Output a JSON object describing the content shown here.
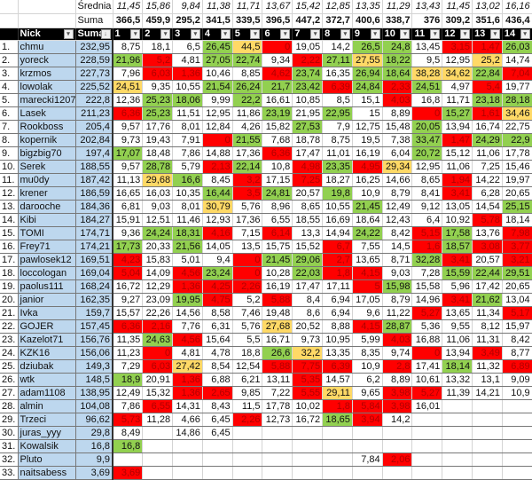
{
  "header": {
    "avg_label": "Średnia",
    "sum_label": "Suma",
    "averages": [
      "11,45",
      "15,86",
      "9,84",
      "11,38",
      "11,71",
      "13,67",
      "15,42",
      "12,85",
      "13,35",
      "11,29",
      "13,43",
      "11,45",
      "13,02",
      "16,16"
    ],
    "sums": [
      "366,5",
      "459,9",
      "295,2",
      "341,5",
      "339,5",
      "396,5",
      "447,2",
      "372,7",
      "400,6",
      "338,7",
      "376",
      "309,2",
      "351,6",
      "436,4"
    ],
    "columns": [
      "Nick",
      "Suma",
      "1",
      "2",
      "3",
      "4",
      "5",
      "6",
      "7",
      "8",
      "9",
      "10",
      "11",
      "12",
      "13",
      "14"
    ]
  },
  "colors": {
    "g": "#92d050",
    "r": "#ff0000",
    "y": "#ffd966",
    "nick_bg": "#bdd7ee"
  },
  "rows": [
    {
      "rank": "1.",
      "nick": "chmu",
      "suma": "232,95",
      "vals": [
        "8,75",
        "18,1",
        "6,5",
        "26,45",
        "44,5",
        "0",
        "19,05",
        "14,2",
        "26,5",
        "24,8",
        "13,45",
        "3,15",
        "1,47",
        "26,03"
      ],
      "c": "wwwgyrwwggwrrg"
    },
    {
      "rank": "2.",
      "nick": "yoreck",
      "suma": "228,59",
      "vals": [
        "21,96",
        "5,2",
        "4,81",
        "27,05",
        "22,74",
        "9,34",
        "2,22",
        "27,11",
        "27,55",
        "18,22",
        "9,5",
        "12,95",
        "25,2",
        "14,74"
      ],
      "c": "grwggwrgygwwyw"
    },
    {
      "rank": "3.",
      "nick": "krzmos",
      "suma": "227,73",
      "vals": [
        "7,96",
        "6,03",
        "1,36",
        "10,46",
        "8,85",
        "4,62",
        "23,74",
        "16,35",
        "26,94",
        "18,64",
        "38,28",
        "34,62",
        "22,84",
        "7,04"
      ],
      "c": "wrrwwrgwggyygr"
    },
    {
      "rank": "4.",
      "nick": "lowolak",
      "suma": "225,52",
      "vals": [
        "24,51",
        "9,35",
        "10,55",
        "21,54",
        "26,24",
        "21,7",
        "23,42",
        "6,39",
        "24,84",
        "2,33",
        "24,51",
        "4,97",
        "5,4",
        "19,77"
      ],
      "c": "ywwggggrgrgwrw"
    },
    {
      "rank": "5.",
      "nick": "marecki1207",
      "suma": "222,8",
      "vals": [
        "12,36",
        "25,23",
        "18,06",
        "9,99",
        "22,2",
        "16,61",
        "10,85",
        "8,5",
        "15,1",
        "4,03",
        "16,8",
        "11,71",
        "23,18",
        "28,18"
      ],
      "c": "wggwgwwwwrwwgg"
    },
    {
      "rank": "6.",
      "nick": "Lasek",
      "suma": "211,23",
      "vals": [
        "6,36",
        "25,23",
        "11,51",
        "12,95",
        "11,86",
        "23,19",
        "21,95",
        "22,95",
        "15",
        "8,89",
        "0",
        "15,27",
        "1,61",
        "34,46"
      ],
      "c": "rgwwwgwgwwrgry"
    },
    {
      "rank": "7.",
      "nick": "Rookboss",
      "suma": "205,4",
      "vals": [
        "9,57",
        "17,76",
        "8,01",
        "12,84",
        "4,26",
        "15,82",
        "27,53",
        "7,9",
        "12,75",
        "15,48",
        "20,05",
        "13,94",
        "16,74",
        "22,75"
      ],
      "c": "wwwwwwgwwwgwww"
    },
    {
      "rank": "8.",
      "nick": "kopernik",
      "suma": "202,84",
      "vals": [
        "9,73",
        "19,43",
        "7,91",
        "0",
        "21,55",
        "7,68",
        "18,78",
        "8,75",
        "19,5",
        "7,38",
        "33,47",
        "1,47",
        "24,29",
        "22,9"
      ],
      "c": "wwwrgwwwwwgrgg"
    },
    {
      "rank": "9.",
      "nick": "bigzbig70",
      "suma": "197,4",
      "vals": [
        "17,07",
        "18,48",
        "7,86",
        "14,88",
        "17,36",
        "6,36",
        "17,47",
        "11,01",
        "16,19",
        "6,04",
        "20,72",
        "15,12",
        "11,06",
        "17,78"
      ],
      "c": "gwwwwrwwwwgwww"
    },
    {
      "rank": "10.",
      "nick": "Serek",
      "suma": "188,55",
      "vals": [
        "9,57",
        "28,78",
        "5,79",
        "2,13",
        "22,14",
        "10,8",
        "4,98",
        "23,35",
        "4,95",
        "29,34",
        "12,95",
        "11,06",
        "7,25",
        "15,46"
      ],
      "c": "wgwrgwrgrywwww"
    },
    {
      "rank": "11.",
      "nick": "mu0dy",
      "suma": "187,42",
      "vals": [
        "11,13",
        "29,68",
        "16,6",
        "8,45",
        "3,2",
        "17,15",
        "7,25",
        "18,27",
        "16,25",
        "14,66",
        "8,65",
        "1,94",
        "14,22",
        "19,97"
      ],
      "c": "wygwrwrwwwwrww"
    },
    {
      "rank": "12.",
      "nick": "krener",
      "suma": "186,59",
      "vals": [
        "16,65",
        "16,03",
        "10,35",
        "16,44",
        "3,5",
        "24,81",
        "20,57",
        "19,8",
        "10,9",
        "8,79",
        "8,41",
        "3,41",
        "6,28",
        "20,65"
      ],
      "c": "wwwgrgwgwwwrww"
    },
    {
      "rank": "13.",
      "nick": "darooche",
      "suma": "184,36",
      "vals": [
        "6,81",
        "9,03",
        "8,01",
        "30,79",
        "5,76",
        "8,96",
        "8,65",
        "10,55",
        "21,45",
        "12,49",
        "9,12",
        "13,05",
        "14,54",
        "25,15"
      ],
      "c": "wwwywwwwgwwwwg"
    },
    {
      "rank": "14.",
      "nick": "Kibi",
      "suma": "184,27",
      "vals": [
        "15,91",
        "12,51",
        "11,46",
        "12,93",
        "17,36",
        "6,55",
        "18,55",
        "16,69",
        "18,64",
        "12,43",
        "6,4",
        "10,92",
        "5,78",
        "18,14"
      ],
      "c": "wwwwwwwwwwwwrw"
    },
    {
      "rank": "15.",
      "nick": "TOMI",
      "suma": "174,71",
      "vals": [
        "9,36",
        "24,24",
        "18,31",
        "4,16",
        "7,15",
        "6,14",
        "13,3",
        "14,94",
        "24,22",
        "8,42",
        "5,15",
        "17,58",
        "13,76",
        "7,98"
      ],
      "c": "wggrwrwwgwrgwr"
    },
    {
      "rank": "16.",
      "nick": "Frey71",
      "suma": "174,21",
      "vals": [
        "17,73",
        "20,33",
        "21,56",
        "14,05",
        "13,5",
        "15,75",
        "15,52",
        "6,7",
        "7,55",
        "14,5",
        "1,6",
        "18,57",
        "3,08",
        "3,77"
      ],
      "c": "gwgwwwwrwwrgrr"
    },
    {
      "rank": "17.",
      "nick": "pawlosek12",
      "suma": "169,51",
      "vals": [
        "4,23",
        "15,83",
        "5,01",
        "9,4",
        "0",
        "21,45",
        "29,06",
        "2,7",
        "13,65",
        "8,71",
        "32,28",
        "3,41",
        "20,57",
        "3,21"
      ],
      "c": "rwwwrggrwwgrwr"
    },
    {
      "rank": "18.",
      "nick": "loccologan",
      "suma": "169,04",
      "vals": [
        "5,04",
        "14,09",
        "4,56",
        "23,24",
        "0",
        "10,28",
        "22,03",
        "1,8",
        "4,15",
        "9,03",
        "7,28",
        "15,59",
        "22,44",
        "29,51"
      ],
      "c": "rwrgrwgrrwwggg"
    },
    {
      "rank": "19.",
      "nick": "paolus111",
      "suma": "168,24",
      "vals": [
        "16,72",
        "12,29",
        "1,36",
        "4,25",
        "2,26",
        "16,19",
        "17,47",
        "17,11",
        "5",
        "15,98",
        "15,58",
        "5,96",
        "17,42",
        "20,65"
      ],
      "c": "wwrrrwwwrgwwww"
    },
    {
      "rank": "20.",
      "nick": "janior",
      "suma": "162,35",
      "vals": [
        "9,27",
        "23,09",
        "19,95",
        "4,75",
        "5,2",
        "5,88",
        "8,4",
        "6,94",
        "17,05",
        "8,79",
        "14,96",
        "3,41",
        "21,62",
        "13,04"
      ],
      "c": "wwgrwrwwwwwrgw"
    },
    {
      "rank": "21.",
      "nick": "Ivka",
      "suma": "159,7",
      "vals": [
        "15,57",
        "22,26",
        "14,56",
        "8,58",
        "7,46",
        "19,48",
        "8,6",
        "6,94",
        "9,6",
        "11,22",
        "5,27",
        "13,65",
        "11,34",
        "5,17"
      ],
      "c": "wwwwwwwwwwrwwr"
    },
    {
      "rank": "22.",
      "nick": "GOJER",
      "suma": "157,45",
      "vals": [
        "6,36",
        "2,16",
        "7,76",
        "6,31",
        "5,76",
        "27,68",
        "20,52",
        "8,88",
        "4,15",
        "28,87",
        "5,36",
        "9,55",
        "8,12",
        "15,97"
      ],
      "c": "rrwwwywwrgwwww"
    },
    {
      "rank": "23.",
      "nick": "Kazelot71",
      "suma": "156,76",
      "vals": [
        "11,35",
        "24,63",
        "4,56",
        "15,64",
        "5,5",
        "16,71",
        "9,73",
        "10,95",
        "5,99",
        "4,03",
        "16,88",
        "11,06",
        "11,31",
        "8,42"
      ],
      "c": "wgrwwwwwwrwwww"
    },
    {
      "rank": "24.",
      "nick": "KZK16",
      "suma": "156,06",
      "vals": [
        "11,23",
        "0",
        "4,81",
        "4,78",
        "18,8",
        "26,6",
        "32,2",
        "13,35",
        "8,35",
        "9,74",
        "0",
        "13,94",
        "3,49",
        "8,77"
      ],
      "c": "wrwwwgywwwrwrw"
    },
    {
      "rank": "25.",
      "nick": "dziubak",
      "suma": "149,3",
      "vals": [
        "7,29",
        "6,03",
        "27,42",
        "8,54",
        "12,54",
        "5,88",
        "7,75",
        "6,39",
        "10,9",
        "2,8",
        "17,41",
        "18,14",
        "11,32",
        "6,89"
      ],
      "c": "wrywwrrrwrwgwr"
    },
    {
      "rank": "26.",
      "nick": "wtk",
      "suma": "148,5",
      "vals": [
        "18,9",
        "20,91",
        "1,36",
        "6,88",
        "6,21",
        "13,11",
        "5,35",
        "14,57",
        "6,2",
        "8,89",
        "10,61",
        "13,32",
        "13,1",
        "9,09"
      ],
      "c": "gwrwwwrwwwwwww"
    },
    {
      "rank": "27.",
      "nick": "adam1108",
      "suma": "138,95",
      "vals": [
        "12,49",
        "15,32",
        "1,36",
        "2,65",
        "9,85",
        "7,22",
        "5,55",
        "29,11",
        "9,65",
        "3,98",
        "5,27",
        "11,39",
        "14,21",
        "10,9"
      ],
      "c": "wwrrwwrywrrwww"
    },
    {
      "rank": "28.",
      "nick": "almin",
      "suma": "104,08",
      "vals": [
        "7,86",
        "6,55",
        "14,31",
        "8,43",
        "11,5",
        "17,78",
        "10,02",
        "1,8",
        "5,84",
        "3,98",
        "16,01",
        "",
        "",
        ""
      ],
      "c": "wrwwwwwrrrwwww"
    },
    {
      "rank": "29.",
      "nick": "Trzeci",
      "suma": "96,62",
      "vals": [
        "5,73",
        "11,28",
        "4,66",
        "6,45",
        "2,26",
        "12,73",
        "16,72",
        "18,65",
        "3,94",
        "14,2",
        "",
        "",
        "",
        ""
      ],
      "c": "rwwwrwwgrwwwww"
    },
    {
      "rank": "30.",
      "nick": "juras_yyy",
      "suma": "29,8",
      "vals": [
        "8,49",
        "",
        "14,86",
        "6,45",
        "",
        "",
        "",
        "",
        "",
        "",
        "",
        "",
        "",
        ""
      ],
      "c": "wwwwwwwwwwwwww"
    },
    {
      "rank": "31.",
      "nick": "Kowalsik",
      "suma": "16,8",
      "vals": [
        "16,8",
        "",
        "",
        "",
        "",
        "",
        "",
        "",
        "",
        "",
        "",
        "",
        "",
        ""
      ],
      "c": "gwwwwwwwwwwwww"
    },
    {
      "rank": "32.",
      "nick": "Pluto",
      "suma": "9,9",
      "vals": [
        "",
        "",
        "",
        "",
        "",
        "",
        "",
        "",
        "7,84",
        "2,06",
        "",
        "",
        "",
        ""
      ],
      "c": "wwwwwwwwwrwwww"
    },
    {
      "rank": "33.",
      "nick": "naitsabess",
      "suma": "3,69",
      "vals": [
        "3,69",
        "",
        "",
        "",
        "",
        "",
        "",
        "",
        "",
        "",
        "",
        "",
        "",
        ""
      ],
      "c": "rwwwwwwwwwwwww"
    }
  ]
}
